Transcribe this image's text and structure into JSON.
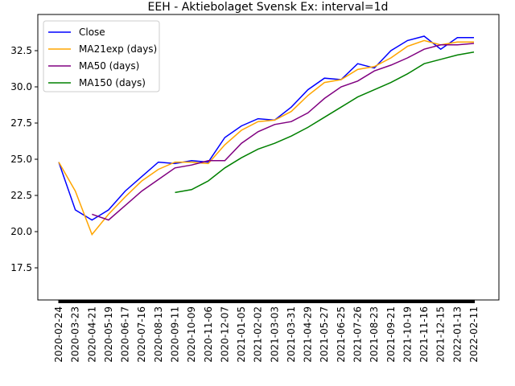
{
  "chart_data": {
    "type": "line",
    "title": "EEH - Aktiebolaget Svensk Ex: interval=1d",
    "x": [
      "2020-02-24",
      "2020-03-23",
      "2020-04-21",
      "2020-05-19",
      "2020-06-17",
      "2020-07-16",
      "2020-08-13",
      "2020-09-11",
      "2020-10-09",
      "2020-11-06",
      "2020-12-07",
      "2021-01-05",
      "2021-02-02",
      "2021-03-03",
      "2021-03-31",
      "2021-04-29",
      "2021-05-27",
      "2021-06-25",
      "2021-07-26",
      "2021-08-23",
      "2021-09-21",
      "2021-10-19",
      "2021-11-16",
      "2021-12-15",
      "2022-01-13",
      "2022-02-11"
    ],
    "series": [
      {
        "name": "Close",
        "color": "#0000ff",
        "values": [
          24.8,
          21.5,
          20.8,
          21.5,
          22.8,
          23.8,
          24.8,
          24.7,
          24.9,
          24.8,
          26.5,
          27.3,
          27.8,
          27.7,
          28.6,
          29.8,
          30.6,
          30.5,
          31.6,
          31.3,
          32.5,
          33.2,
          33.5,
          32.6,
          33.4,
          33.4
        ]
      },
      {
        "name": "MA21exp (days)",
        "color": "#ffa500",
        "values": [
          24.8,
          22.8,
          19.8,
          21.2,
          22.4,
          23.5,
          24.3,
          24.8,
          24.8,
          24.7,
          26.0,
          27.0,
          27.6,
          27.7,
          28.3,
          29.4,
          30.3,
          30.5,
          31.2,
          31.4,
          32.0,
          32.8,
          33.2,
          32.9,
          33.1,
          33.1
        ]
      },
      {
        "name": "MA50 (days)",
        "color": "#800080",
        "values": [
          null,
          null,
          21.2,
          20.8,
          21.8,
          22.8,
          23.6,
          24.4,
          24.6,
          24.9,
          24.9,
          26.1,
          26.9,
          27.4,
          27.6,
          28.2,
          29.2,
          30.0,
          30.4,
          31.1,
          31.5,
          32.0,
          32.6,
          32.9,
          32.9,
          33.0
        ]
      },
      {
        "name": "MA150 (days)",
        "color": "#008000",
        "values": [
          null,
          null,
          null,
          null,
          null,
          null,
          null,
          22.7,
          22.9,
          23.5,
          24.4,
          25.1,
          25.7,
          26.1,
          26.6,
          27.2,
          27.9,
          28.6,
          29.3,
          29.8,
          30.3,
          30.9,
          31.6,
          31.9,
          32.2,
          32.4
        ]
      }
    ],
    "ylim": [
      15.28,
      35.0
    ],
    "yticks": [
      17.5,
      {
        "value": 20,
        "label": "20.0"
      },
      22.5,
      {
        "value": 25,
        "label": "25.0"
      },
      27.5,
      {
        "value": 30,
        "label": "30.0"
      },
      32.5
    ],
    "legend": "upper left"
  }
}
